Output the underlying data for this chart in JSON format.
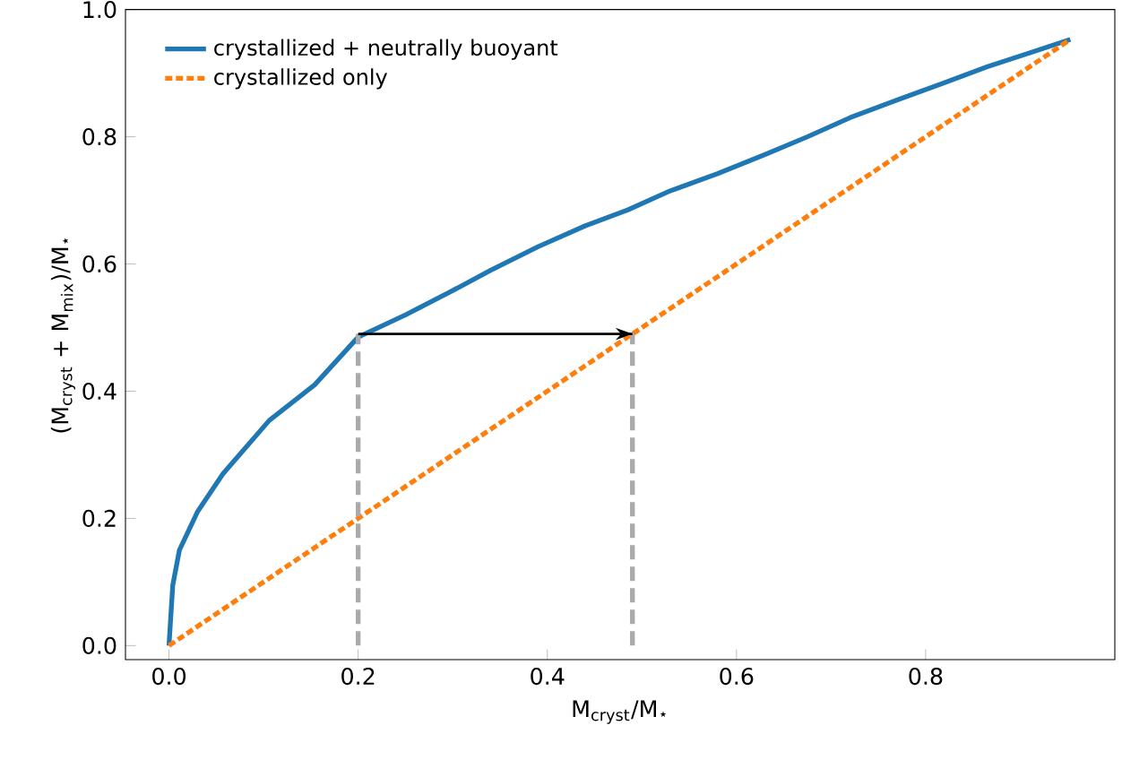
{
  "chart_data": {
    "type": "line",
    "xlabel": "M$_{cryst}$/M$_{⋆}$",
    "ylabel": "(M$_{cryst}$ + M$_{mix}$)/M$_{⋆}$",
    "series": [
      {
        "name": "crystallized + neutrally buoyant",
        "color": "#1f77b4",
        "line_style": "solid",
        "x": [
          0,
          0.004,
          0.011,
          0.03,
          0.057,
          0.106,
          0.154,
          0.2,
          0.25,
          0.296,
          0.34,
          0.39,
          0.44,
          0.485,
          0.53,
          0.58,
          0.63,
          0.675,
          0.72,
          0.77,
          0.82,
          0.865,
          0.91,
          0.953
        ],
        "values": [
          0,
          0.095,
          0.15,
          0.21,
          0.27,
          0.354,
          0.41,
          0.485,
          0.52,
          0.555,
          0.59,
          0.627,
          0.66,
          0.685,
          0.715,
          0.742,
          0.772,
          0.8,
          0.83,
          0.858,
          0.885,
          0.91,
          0.932,
          0.953
        ]
      },
      {
        "name": "crystallized only",
        "color": "#ff7f0e",
        "line_style": "dashed",
        "x": [
          0,
          0.953
        ],
        "values": [
          0,
          0.953
        ]
      },
      {
        "color": "#aaaaaa",
        "line_style": "dashed",
        "x": [
          0.2,
          0.2
        ],
        "values": [
          0,
          0.49
        ]
      },
      {
        "color": "#aaaaaa",
        "line_style": "dashed",
        "x": [
          0.49,
          0.49
        ],
        "values": [
          0,
          0.49
        ]
      },
      {
        "color": "#000000",
        "line_style": "solid",
        "x": [
          0.2,
          0.49
        ],
        "values": [
          0.49,
          0.49
        ]
      }
    ],
    "xlim": [
      -0.046,
      1.0
    ],
    "ylim": [
      -0.022,
      1.0
    ],
    "xticks": [
      {
        "value": 0,
        "label": "0.0"
      },
      {
        "value": 0.2,
        "label": "0.2"
      },
      {
        "value": 0.4,
        "label": "0.4"
      },
      {
        "value": 0.6,
        "label": "0.6"
      },
      {
        "value": 0.8,
        "label": "0.8"
      }
    ],
    "yticks": [
      {
        "value": 0,
        "label": "0.0"
      },
      {
        "value": 0.2,
        "label": "0.2"
      },
      {
        "value": 0.4,
        "label": "0.4"
      },
      {
        "value": 0.6,
        "label": "0.6"
      },
      {
        "value": 0.8,
        "label": "0.8"
      },
      {
        "value": 1.0,
        "label": "1.0"
      }
    ],
    "legend": "top left"
  }
}
